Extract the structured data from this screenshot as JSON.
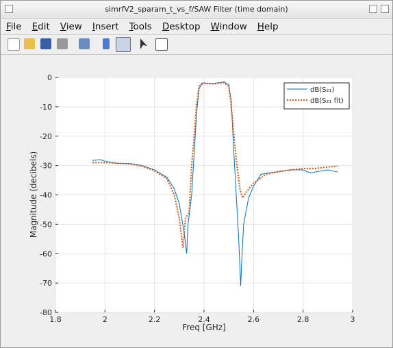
{
  "window": {
    "title": "simrfV2_sparam_t_vs_f/SAW Filter  (time domain)",
    "menu": [
      "File",
      "Edit",
      "View",
      "Insert",
      "Tools",
      "Desktop",
      "Window",
      "Help"
    ]
  },
  "chart_data": {
    "type": "line",
    "xlabel": "Freq [GHz]",
    "ylabel": "Magnitude (decibels)",
    "xlim": [
      1.8,
      3
    ],
    "xticks": [
      1.8,
      2,
      2.2,
      2.4,
      2.6,
      2.8,
      3
    ],
    "ylim": [
      -80,
      0
    ],
    "yticks": [
      -80,
      -70,
      -60,
      -50,
      -40,
      -30,
      -20,
      -10,
      0
    ],
    "grid": true,
    "legend": "top-right",
    "series": [
      {
        "name": "dB(S₂₁)",
        "color": "#0072bd",
        "style": "solid",
        "x": [
          1.95,
          1.98,
          2.0,
          2.05,
          2.1,
          2.15,
          2.2,
          2.25,
          2.28,
          2.3,
          2.31,
          2.32,
          2.33,
          2.335,
          2.34,
          2.35,
          2.36,
          2.37,
          2.38,
          2.39,
          2.4,
          2.42,
          2.44,
          2.46,
          2.48,
          2.5,
          2.51,
          2.52,
          2.53,
          2.54,
          2.548,
          2.552,
          2.56,
          2.58,
          2.6,
          2.63,
          2.66,
          2.7,
          2.75,
          2.8,
          2.83,
          2.86,
          2.9,
          2.94
        ],
        "values": [
          -28.3,
          -28,
          -28.5,
          -29.3,
          -29.3,
          -30,
          -31.5,
          -34,
          -38,
          -43,
          -48,
          -53,
          -60,
          -50,
          -47,
          -40,
          -26,
          -12,
          -4,
          -2,
          -1.8,
          -2.2,
          -2,
          -1.8,
          -1.5,
          -2.5,
          -8,
          -25,
          -40,
          -55,
          -71,
          -63,
          -50,
          -41,
          -37,
          -33,
          -32.5,
          -32.2,
          -31.5,
          -31.5,
          -32.5,
          -32,
          -31.5,
          -32.2
        ]
      },
      {
        "name": "dB(S₂₁ fit)",
        "color": "#d95319",
        "style": "dotted",
        "x": [
          1.95,
          2.0,
          2.05,
          2.1,
          2.15,
          2.2,
          2.25,
          2.28,
          2.3,
          2.315,
          2.325,
          2.34,
          2.35,
          2.36,
          2.37,
          2.38,
          2.4,
          2.44,
          2.48,
          2.5,
          2.51,
          2.53,
          2.545,
          2.555,
          2.58,
          2.6,
          2.65,
          2.7,
          2.75,
          2.8,
          2.85,
          2.9,
          2.94
        ],
        "values": [
          -29,
          -29,
          -29.2,
          -29.5,
          -30.2,
          -31.8,
          -34.5,
          -40,
          -48,
          -58,
          -48,
          -46,
          -30,
          -20,
          -9,
          -3,
          -2,
          -2.2,
          -1.8,
          -3,
          -10,
          -28,
          -38,
          -41,
          -38,
          -36,
          -33,
          -32,
          -31.5,
          -31,
          -31,
          -30.5,
          -30.2
        ]
      }
    ]
  }
}
